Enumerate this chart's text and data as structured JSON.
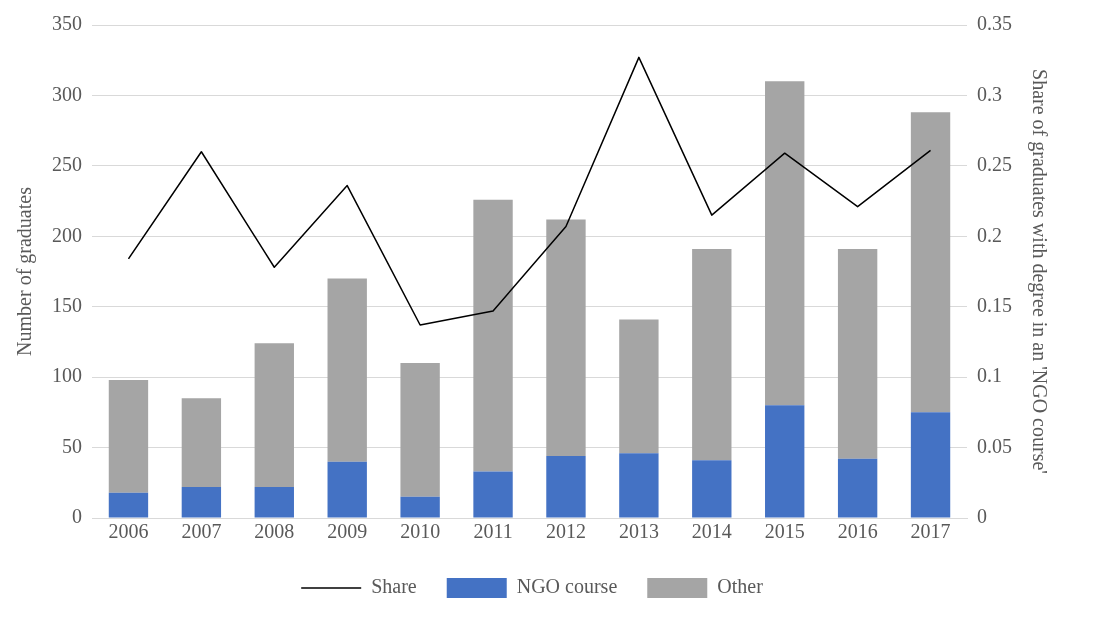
{
  "chart_data": {
    "type": "bar",
    "stacked": true,
    "categories": [
      "2006",
      "2007",
      "2008",
      "2009",
      "2010",
      "2011",
      "2012",
      "2013",
      "2014",
      "2015",
      "2016",
      "2017"
    ],
    "series": [
      {
        "name": "NGO course",
        "color": "#4472c4",
        "values": [
          18,
          22,
          22,
          40,
          15,
          33,
          44,
          46,
          41,
          80,
          42,
          75
        ]
      },
      {
        "name": "Other",
        "color": "#a5a5a5",
        "values": [
          80,
          63,
          102,
          130,
          95,
          193,
          168,
          95,
          150,
          230,
          149,
          213
        ]
      },
      {
        "name": "Share",
        "type": "line",
        "axis": "y2",
        "color": "#000000",
        "values": [
          0.184,
          0.26,
          0.178,
          0.236,
          0.137,
          0.147,
          0.207,
          0.327,
          0.215,
          0.259,
          0.221,
          0.261
        ]
      }
    ],
    "ylabel": "Number of graduates",
    "y2label": "Share of graduates with degree in an 'NGO course'",
    "ylim": [
      0,
      350
    ],
    "yticks": [
      0,
      50,
      100,
      150,
      200,
      250,
      300,
      350
    ],
    "y2lim": [
      0,
      0.35
    ],
    "y2ticks": [
      0,
      0.05,
      0.1,
      0.15,
      0.2,
      0.25,
      0.3,
      0.35
    ],
    "grid": "y",
    "legend": "bottom",
    "marker": "none",
    "line_style": "solid"
  }
}
